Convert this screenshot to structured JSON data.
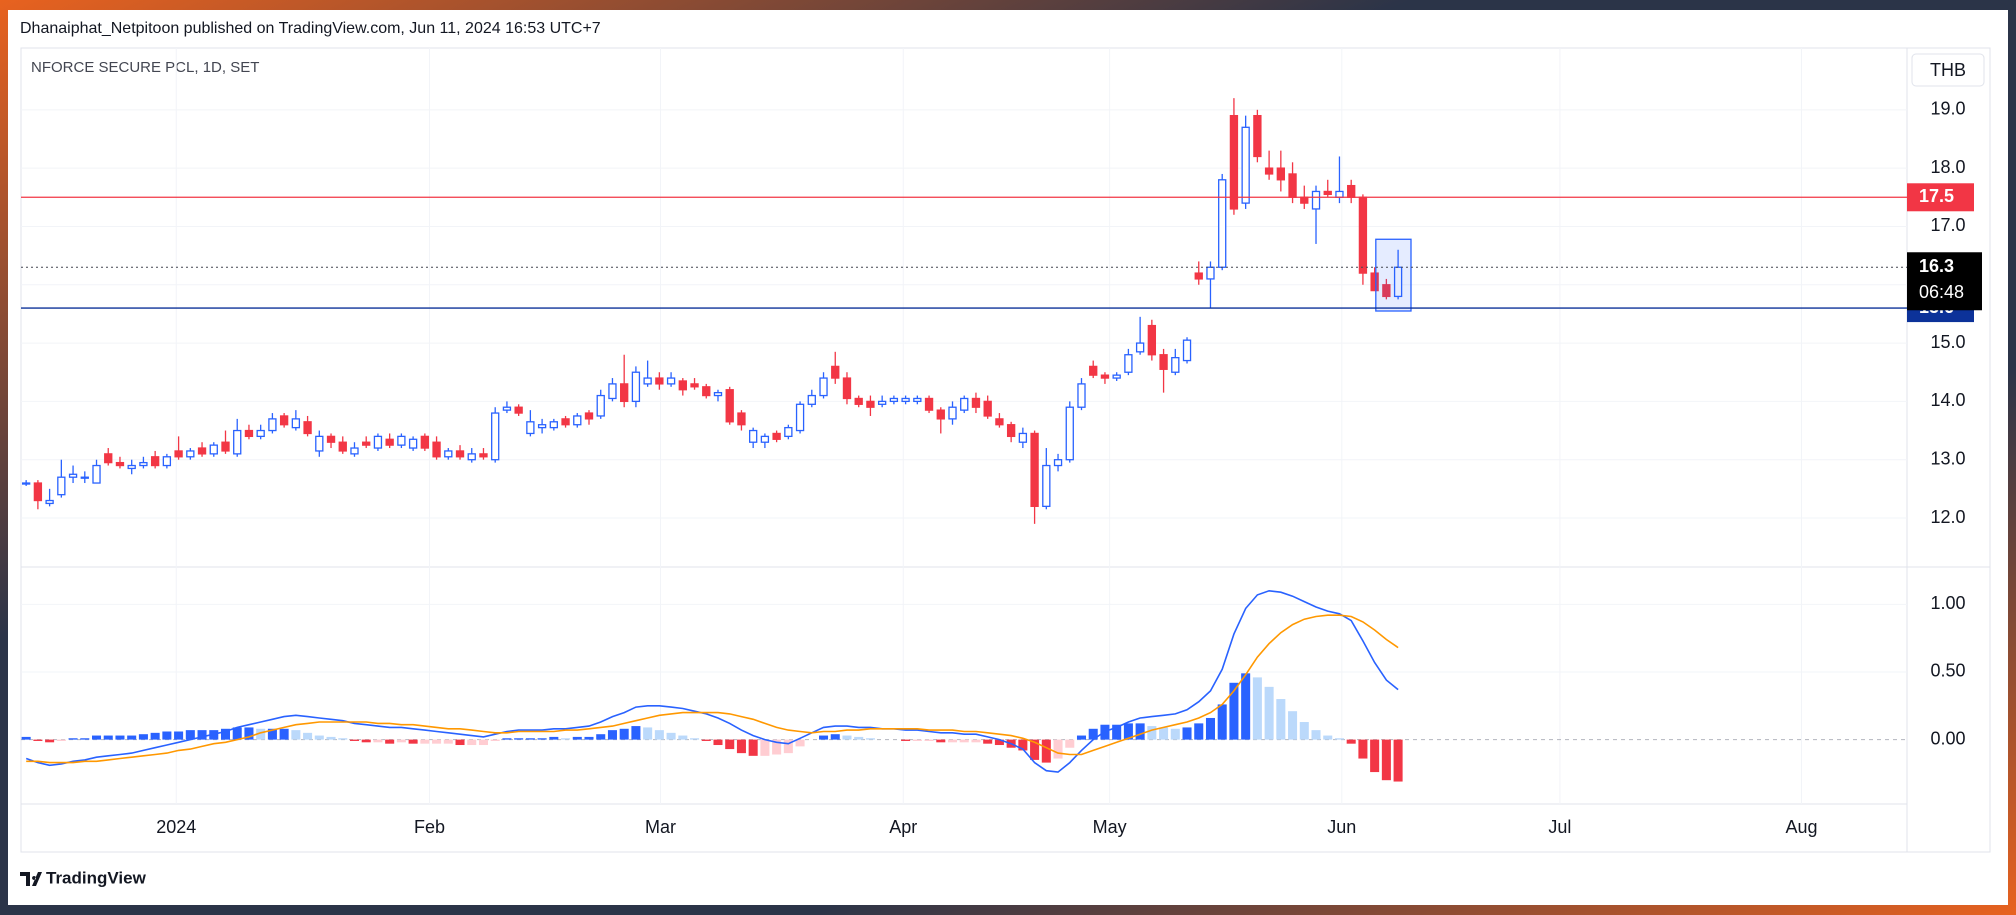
{
  "header": {
    "text": "Dhanaiphat_Netpitoon published on TradingView.com, Jun 11, 2024 16:53 UTC+7"
  },
  "footer": {
    "brand": "TradingView"
  },
  "chart_data": [
    {
      "type": "candlestick",
      "title": "NFORCE SECURE PCL, 1D, SET",
      "currency": "THB",
      "up_color": "#2962ff",
      "down_color": "#f23645",
      "grid": true,
      "open": [
        12.6,
        12.6,
        12.25,
        12.4,
        12.7,
        12.7,
        12.6,
        13.1,
        12.95,
        12.85,
        12.9,
        13.05,
        12.9,
        13.15,
        13.05,
        13.2,
        13.1,
        13.3,
        13.1,
        13.5,
        13.4,
        13.5,
        13.75,
        13.55,
        13.65,
        13.15,
        13.4,
        13.3,
        13.1,
        13.3,
        13.2,
        13.35,
        13.25,
        13.2,
        13.4,
        13.3,
        13.05,
        13.15,
        13.0,
        13.1,
        13.0,
        13.85,
        13.9,
        13.45,
        13.55,
        13.55,
        13.7,
        13.6,
        13.8,
        13.75,
        14.05,
        14.3,
        14.0,
        14.3,
        14.4,
        14.3,
        14.35,
        14.3,
        14.25,
        14.1,
        14.2,
        13.8,
        13.3,
        13.3,
        13.45,
        13.4,
        13.5,
        13.95,
        14.1,
        14.6,
        14.4,
        14.05,
        14.0,
        13.95,
        14.0,
        14.0,
        14.0,
        14.05,
        13.85,
        13.7,
        13.85,
        14.05,
        14.0,
        13.7,
        13.6,
        13.3,
        13.45,
        12.2,
        12.9,
        13.0,
        13.9,
        14.6,
        14.45,
        14.4,
        14.5,
        14.85,
        15.3,
        14.8,
        14.5,
        14.7,
        16.2,
        16.1,
        16.3,
        18.9,
        17.4,
        18.9,
        18.0,
        18.0,
        17.9,
        17.5,
        17.3,
        17.6,
        17.5,
        17.7,
        17.5,
        16.2,
        16.0,
        15.8
      ],
      "high": [
        12.65,
        12.65,
        12.5,
        13.0,
        12.9,
        12.8,
        13.0,
        13.2,
        13.05,
        13.0,
        13.05,
        13.15,
        13.1,
        13.4,
        13.2,
        13.3,
        13.3,
        13.5,
        13.7,
        13.6,
        13.6,
        13.8,
        13.8,
        13.85,
        13.75,
        13.5,
        13.45,
        13.4,
        13.3,
        13.4,
        13.45,
        13.45,
        13.45,
        13.4,
        13.45,
        13.4,
        13.2,
        13.25,
        13.2,
        13.2,
        13.9,
        14.0,
        13.95,
        13.85,
        13.7,
        13.7,
        13.75,
        13.8,
        13.85,
        14.2,
        14.4,
        14.8,
        14.6,
        14.7,
        14.5,
        14.5,
        14.4,
        14.4,
        14.3,
        14.2,
        14.25,
        13.85,
        13.55,
        13.45,
        13.5,
        13.6,
        14.0,
        14.2,
        14.5,
        14.85,
        14.5,
        14.1,
        14.1,
        14.1,
        14.1,
        14.1,
        14.1,
        14.1,
        13.9,
        14.0,
        14.1,
        14.15,
        14.1,
        13.8,
        13.65,
        13.55,
        13.5,
        13.2,
        13.1,
        14.0,
        14.4,
        14.7,
        14.5,
        14.5,
        14.9,
        15.45,
        15.4,
        14.9,
        14.9,
        15.1,
        16.4,
        16.4,
        17.9,
        19.2,
        18.9,
        19.0,
        18.3,
        18.3,
        18.1,
        17.7,
        17.7,
        17.8,
        18.2,
        17.8,
        17.55,
        16.3,
        16.1,
        16.6
      ],
      "low": [
        12.55,
        12.15,
        12.2,
        12.35,
        12.6,
        12.6,
        12.6,
        12.9,
        12.85,
        12.75,
        12.85,
        12.85,
        12.85,
        13.0,
        13.0,
        13.05,
        13.05,
        13.1,
        13.05,
        13.35,
        13.35,
        13.45,
        13.55,
        13.5,
        13.4,
        13.05,
        13.2,
        13.1,
        13.05,
        13.2,
        13.15,
        13.2,
        13.2,
        13.15,
        13.15,
        13.0,
        13.0,
        13.0,
        12.95,
        13.0,
        12.95,
        13.8,
        13.75,
        13.4,
        13.45,
        13.5,
        13.55,
        13.55,
        13.6,
        13.7,
        14.0,
        13.9,
        13.9,
        14.25,
        14.2,
        14.25,
        14.1,
        14.2,
        14.05,
        14.0,
        13.6,
        13.5,
        13.2,
        13.2,
        13.3,
        13.35,
        13.45,
        13.9,
        14.05,
        14.3,
        13.95,
        13.9,
        13.75,
        13.9,
        13.95,
        13.95,
        13.95,
        13.8,
        13.45,
        13.6,
        13.8,
        13.8,
        13.7,
        13.55,
        13.3,
        13.2,
        11.9,
        12.15,
        12.8,
        12.95,
        13.85,
        14.4,
        14.3,
        14.35,
        14.45,
        14.8,
        14.7,
        14.15,
        14.45,
        14.65,
        16.0,
        15.6,
        16.25,
        17.2,
        17.3,
        18.1,
        17.8,
        17.6,
        17.4,
        17.3,
        16.7,
        17.5,
        17.4,
        17.4,
        16.0,
        15.9,
        15.75,
        15.75
      ],
      "close": [
        12.6,
        12.3,
        12.3,
        12.7,
        12.75,
        12.7,
        12.9,
        12.95,
        12.9,
        12.9,
        12.95,
        12.9,
        13.05,
        13.05,
        13.15,
        13.1,
        13.25,
        13.15,
        13.5,
        13.4,
        13.5,
        13.7,
        13.6,
        13.7,
        13.45,
        13.4,
        13.3,
        13.15,
        13.2,
        13.25,
        13.4,
        13.25,
        13.4,
        13.35,
        13.2,
        13.05,
        13.15,
        13.05,
        13.1,
        13.05,
        13.8,
        13.9,
        13.8,
        13.65,
        13.6,
        13.65,
        13.6,
        13.75,
        13.7,
        14.1,
        14.3,
        14.0,
        14.5,
        14.4,
        14.3,
        14.4,
        14.2,
        14.25,
        14.1,
        14.15,
        13.65,
        13.6,
        13.5,
        13.4,
        13.35,
        13.55,
        13.95,
        14.1,
        14.4,
        14.4,
        14.05,
        13.95,
        13.9,
        14.0,
        14.05,
        14.05,
        14.05,
        13.85,
        13.7,
        13.9,
        14.05,
        13.9,
        13.75,
        13.6,
        13.4,
        13.45,
        12.2,
        12.9,
        13.0,
        13.9,
        14.3,
        14.45,
        14.4,
        14.45,
        14.8,
        15.0,
        14.8,
        14.55,
        14.75,
        15.05,
        16.1,
        16.3,
        17.8,
        17.3,
        18.7,
        18.2,
        17.9,
        17.8,
        17.5,
        17.4,
        17.6,
        17.55,
        17.6,
        17.5,
        16.2,
        15.9,
        15.8,
        16.3
      ],
      "xlim": [
        -0.44,
        160.4
      ],
      "xticks": [
        {
          "value": 12.8,
          "label": "2024"
        },
        {
          "value": 34.4,
          "label": "Feb"
        },
        {
          "value": 54.1,
          "label": "Mar"
        },
        {
          "value": 74.8,
          "label": "Apr"
        },
        {
          "value": 92.4,
          "label": "May"
        },
        {
          "value": 112.2,
          "label": "Jun"
        },
        {
          "value": 130.8,
          "label": "Jul"
        },
        {
          "value": 151.4,
          "label": "Aug"
        }
      ],
      "ylim": [
        11.16,
        20.06
      ],
      "yticks": [
        {
          "value": 12,
          "label": "12.0"
        },
        {
          "value": 13,
          "label": "13.0"
        },
        {
          "value": 14,
          "label": "14.0"
        },
        {
          "value": 15,
          "label": "15.0"
        },
        {
          "value": 16,
          "label": "16.0"
        },
        {
          "value": 17,
          "label": "17.0"
        },
        {
          "value": 18,
          "label": "18.0"
        },
        {
          "value": 19,
          "label": "19.0"
        }
      ],
      "hlines": [
        {
          "value": 17.5,
          "color": "#f23645"
        },
        {
          "value": 15.6,
          "color": "#0c3299"
        }
      ],
      "last": {
        "value": 16.3,
        "countdown": "06:48"
      },
      "rectangle": {
        "x": [
          115.1,
          118.1
        ],
        "y": [
          15.55,
          16.78
        ],
        "color": "#2962ff"
      }
    },
    {
      "type": "macd",
      "macd_color": "#2962ff",
      "signal_color": "#ff9800",
      "hist_colors": {
        "pos_rising": "#2962ff",
        "pos_falling": "#bbd9fb",
        "neg_falling": "#f23645",
        "neg_rising": "#ffcdd2"
      },
      "histogram": [
        0.02,
        -0.01,
        -0.02,
        -0.01,
        0.01,
        0.01,
        0.03,
        0.03,
        0.03,
        0.03,
        0.04,
        0.05,
        0.06,
        0.06,
        0.07,
        0.07,
        0.07,
        0.08,
        0.09,
        0.09,
        0.08,
        0.08,
        0.08,
        0.07,
        0.05,
        0.03,
        0.02,
        0.01,
        -0.01,
        -0.02,
        -0.02,
        -0.03,
        -0.02,
        -0.03,
        -0.03,
        -0.03,
        -0.03,
        -0.04,
        -0.04,
        -0.04,
        -0.01,
        0.01,
        0.01,
        0.01,
        0.01,
        0.02,
        0.01,
        0.02,
        0.02,
        0.04,
        0.07,
        0.08,
        0.1,
        0.09,
        0.07,
        0.05,
        0.03,
        0.01,
        -0.01,
        -0.04,
        -0.07,
        -0.1,
        -0.12,
        -0.12,
        -0.11,
        -0.1,
        -0.05,
        0.0,
        0.03,
        0.04,
        0.03,
        0.02,
        0.01,
        0.0,
        0.0,
        -0.01,
        -0.01,
        -0.01,
        -0.02,
        -0.02,
        -0.02,
        -0.02,
        -0.03,
        -0.04,
        -0.06,
        -0.08,
        -0.15,
        -0.17,
        -0.14,
        -0.06,
        0.03,
        0.08,
        0.11,
        0.11,
        0.12,
        0.12,
        0.1,
        0.09,
        0.08,
        0.09,
        0.12,
        0.16,
        0.26,
        0.42,
        0.49,
        0.46,
        0.39,
        0.3,
        0.21,
        0.13,
        0.07,
        0.03,
        0.01,
        -0.03,
        -0.14,
        -0.24,
        -0.3,
        -0.31
      ],
      "macd": [
        -0.14,
        -0.17,
        -0.19,
        -0.18,
        -0.16,
        -0.15,
        -0.13,
        -0.12,
        -0.11,
        -0.1,
        -0.08,
        -0.06,
        -0.04,
        -0.02,
        0.0,
        0.02,
        0.04,
        0.06,
        0.09,
        0.11,
        0.13,
        0.15,
        0.17,
        0.18,
        0.17,
        0.16,
        0.15,
        0.14,
        0.12,
        0.11,
        0.1,
        0.09,
        0.09,
        0.08,
        0.07,
        0.06,
        0.05,
        0.04,
        0.03,
        0.02,
        0.04,
        0.06,
        0.07,
        0.07,
        0.07,
        0.08,
        0.08,
        0.09,
        0.1,
        0.13,
        0.17,
        0.2,
        0.24,
        0.25,
        0.25,
        0.24,
        0.23,
        0.21,
        0.19,
        0.16,
        0.12,
        0.07,
        0.03,
        0.0,
        -0.02,
        -0.03,
        0.01,
        0.05,
        0.09,
        0.1,
        0.1,
        0.09,
        0.09,
        0.08,
        0.08,
        0.07,
        0.07,
        0.06,
        0.05,
        0.05,
        0.04,
        0.04,
        0.02,
        0.0,
        -0.03,
        -0.07,
        -0.17,
        -0.23,
        -0.24,
        -0.17,
        -0.08,
        0.0,
        0.06,
        0.09,
        0.13,
        0.16,
        0.17,
        0.18,
        0.19,
        0.22,
        0.28,
        0.36,
        0.52,
        0.78,
        0.97,
        1.07,
        1.1,
        1.09,
        1.06,
        1.02,
        0.98,
        0.95,
        0.93,
        0.88,
        0.73,
        0.57,
        0.44,
        0.37
      ],
      "signal": [
        -0.16,
        -0.16,
        -0.17,
        -0.17,
        -0.17,
        -0.16,
        -0.16,
        -0.15,
        -0.14,
        -0.13,
        -0.12,
        -0.11,
        -0.1,
        -0.08,
        -0.07,
        -0.05,
        -0.03,
        -0.02,
        0.0,
        0.02,
        0.05,
        0.07,
        0.09,
        0.11,
        0.12,
        0.13,
        0.13,
        0.13,
        0.13,
        0.13,
        0.12,
        0.12,
        0.11,
        0.11,
        0.1,
        0.09,
        0.08,
        0.08,
        0.07,
        0.06,
        0.05,
        0.05,
        0.06,
        0.06,
        0.06,
        0.06,
        0.07,
        0.07,
        0.08,
        0.09,
        0.1,
        0.12,
        0.14,
        0.16,
        0.18,
        0.19,
        0.2,
        0.2,
        0.2,
        0.2,
        0.19,
        0.17,
        0.15,
        0.12,
        0.09,
        0.07,
        0.06,
        0.05,
        0.06,
        0.06,
        0.07,
        0.07,
        0.08,
        0.08,
        0.08,
        0.08,
        0.08,
        0.07,
        0.07,
        0.07,
        0.06,
        0.06,
        0.05,
        0.04,
        0.03,
        0.01,
        -0.02,
        -0.06,
        -0.1,
        -0.11,
        -0.11,
        -0.08,
        -0.05,
        -0.02,
        0.01,
        0.04,
        0.07,
        0.09,
        0.11,
        0.13,
        0.16,
        0.2,
        0.26,
        0.36,
        0.48,
        0.61,
        0.71,
        0.79,
        0.85,
        0.89,
        0.91,
        0.92,
        0.92,
        0.91,
        0.87,
        0.81,
        0.74,
        0.68
      ],
      "ylim": [
        -0.476,
        1.276
      ],
      "yticks": [
        {
          "value": 0,
          "label": "0.00"
        },
        {
          "value": 0.5,
          "label": "0.50"
        },
        {
          "value": 1,
          "label": "1.00"
        }
      ]
    }
  ]
}
